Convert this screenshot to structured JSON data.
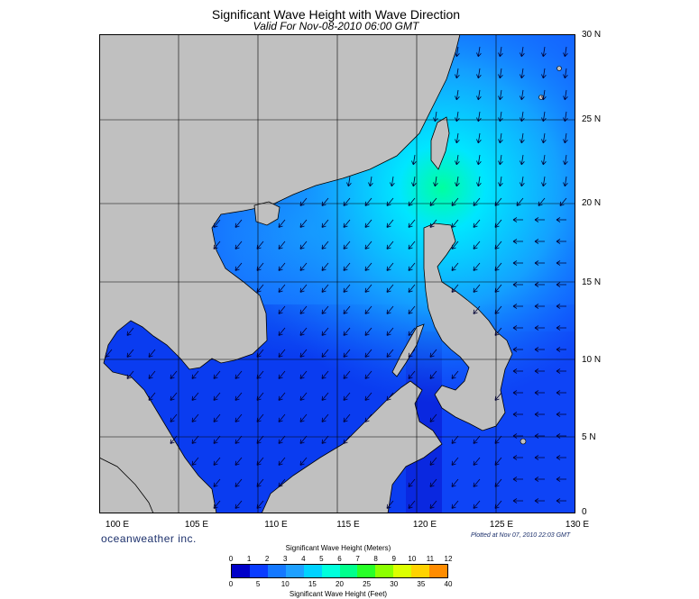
{
  "title": "Significant Wave Height with Wave Direction",
  "subtitle": "Valid For Nov-08-2010 06:00 GMT",
  "lon_labels": [
    "100 E",
    "105 E",
    "110 E",
    "115 E",
    "120 E",
    "125 E",
    "130 E"
  ],
  "lat_labels": [
    "30 N",
    "25 N",
    "20 N",
    "15 N",
    "10 N",
    "5 N",
    "0"
  ],
  "brand": "oceanweather inc.",
  "plotted": "Plotted at Nov 07, 2010 22:03 GMT",
  "colorbar": {
    "title": "Significant Wave Height (Meters)",
    "footer": "Significant Wave Height (Feet)",
    "meter_ticks": [
      "0",
      "1",
      "2",
      "3",
      "4",
      "5",
      "6",
      "7",
      "8",
      "9",
      "10",
      "11",
      "12"
    ],
    "feet_ticks": [
      "0",
      "5",
      "10",
      "15",
      "20",
      "25",
      "30",
      "35",
      "40"
    ],
    "colors": [
      "#0000c8",
      "#0a3cff",
      "#1478ff",
      "#1ea0ff",
      "#00d2ff",
      "#00ffdc",
      "#00ff8c",
      "#28ff28",
      "#8cff00",
      "#dcff00",
      "#ffd200",
      "#ff8c00",
      "#ff2800"
    ]
  },
  "colors": {
    "land": "#c0c0c0",
    "water_low": "#0a20e0",
    "water_mid": "#1464ff",
    "water_high": "#00c8ff",
    "peak": "#00ff90",
    "grid": "#000000"
  }
}
